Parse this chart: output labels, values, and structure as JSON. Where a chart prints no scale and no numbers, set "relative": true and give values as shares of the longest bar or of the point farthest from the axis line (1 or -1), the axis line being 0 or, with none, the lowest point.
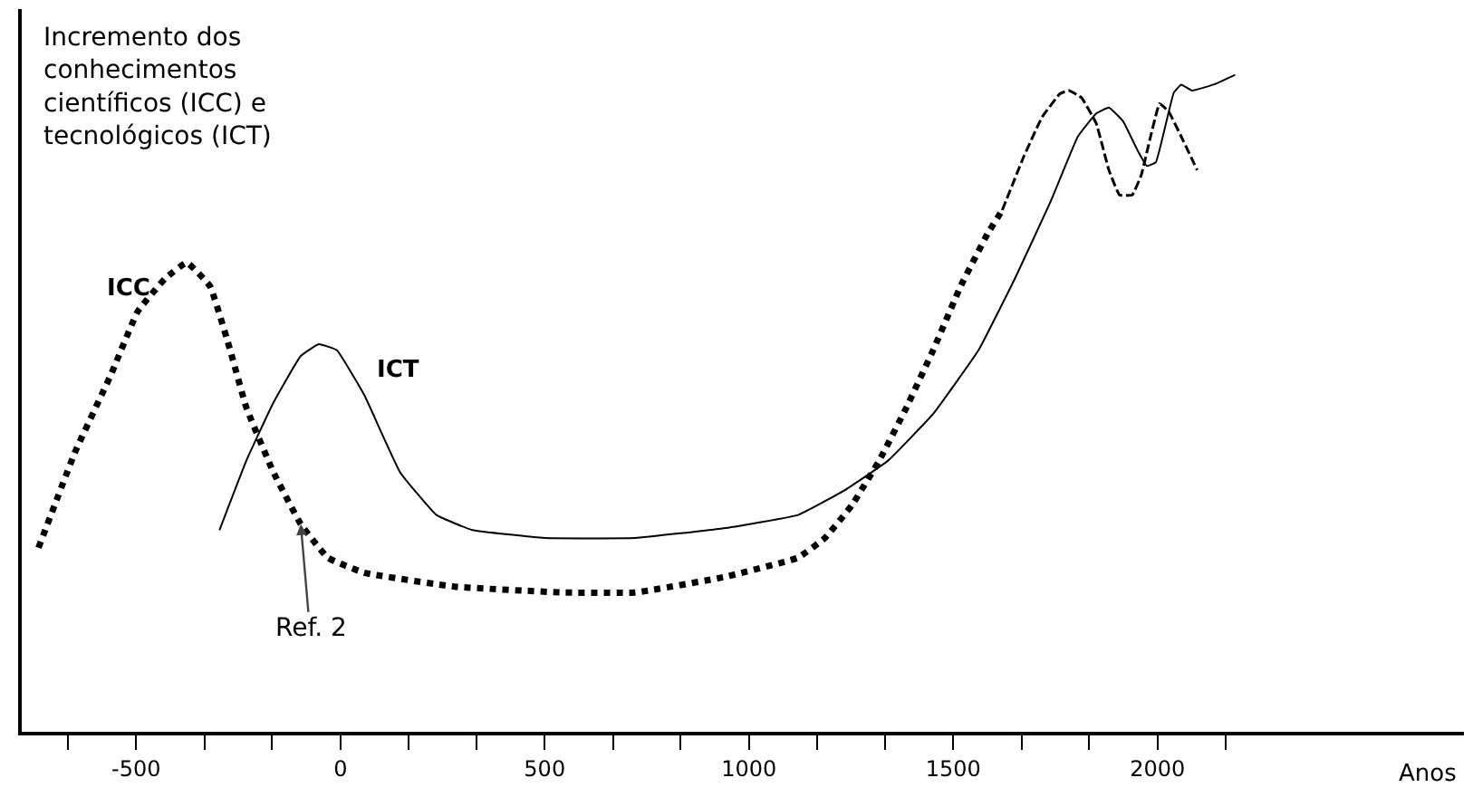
{
  "chart_data": {
    "type": "line",
    "relative": true,
    "ylabel": "Incremento dos\nconhecimentos\ncientíficos (ICC) e\ntecnológicos (ICT)",
    "xlabel": "Anos",
    "xlim": [
      -780,
      2750
    ],
    "xticks": [
      {
        "value": -667,
        "label": null
      },
      {
        "value": -500,
        "label": "-500"
      },
      {
        "value": -333,
        "label": null
      },
      {
        "value": -167,
        "label": null
      },
      0,
      {
        "value": 167,
        "label": null
      },
      {
        "value": 333,
        "label": null
      },
      500,
      {
        "value": 667,
        "label": null
      },
      {
        "value": 833,
        "label": null
      },
      1000,
      {
        "value": 1167,
        "label": null
      },
      {
        "value": 1333,
        "label": null
      },
      1500,
      {
        "value": 1667,
        "label": null
      },
      {
        "value": 1833,
        "label": null
      },
      2000,
      {
        "value": 2167,
        "label": null
      }
    ],
    "grid": false,
    "legend": false,
    "series": [
      {
        "name": "ICC",
        "color": "#000000",
        "line_style": "dotted",
        "x": [
          -739,
          -650,
          -562,
          -496,
          -429,
          -376,
          -319,
          -274,
          -230,
          -164,
          -97,
          -31,
          58,
          279,
          544,
          721,
          943,
          1120,
          1186,
          1252,
          1319,
          1385,
          1451,
          1518,
          1584,
          1620
        ],
        "values": [
          0.28,
          0.425,
          0.543,
          0.64,
          0.69,
          0.714,
          0.678,
          0.59,
          0.493,
          0.395,
          0.316,
          0.265,
          0.242,
          0.221,
          0.212,
          0.212,
          0.236,
          0.265,
          0.295,
          0.345,
          0.413,
          0.493,
          0.581,
          0.678,
          0.758,
          0.794
        ]
      },
      {
        "color": "#000000",
        "line_style": "dashed",
        "x": [
          1620,
          1673,
          1717,
          1761,
          1783,
          1814,
          1850,
          1881,
          1907,
          1938,
          1960,
          1983,
          2005,
          2027,
          2058,
          2097
        ],
        "values": [
          0.794,
          0.876,
          0.935,
          0.971,
          0.976,
          0.965,
          0.926,
          0.855,
          0.817,
          0.817,
          0.847,
          0.906,
          0.956,
          0.944,
          0.906,
          0.855
        ]
      },
      {
        "name": "ICT",
        "color": "#000000",
        "line_style": "solid",
        "x": [
          -296,
          -230,
          -164,
          -97,
          -53,
          -9,
          58,
          146,
          235,
          323,
          500,
          721,
          943,
          1120,
          1230,
          1341,
          1451,
          1562,
          1651,
          1739,
          1805,
          1850,
          1881,
          1916,
          1951,
          1974,
          1996,
          2013,
          2040,
          2058,
          2084,
          2137,
          2190
        ],
        "values": [
          0.307,
          0.413,
          0.501,
          0.572,
          0.59,
          0.581,
          0.513,
          0.395,
          0.33,
          0.307,
          0.295,
          0.295,
          0.31,
          0.33,
          0.366,
          0.413,
          0.484,
          0.581,
          0.69,
          0.808,
          0.906,
          0.941,
          0.95,
          0.929,
          0.885,
          0.861,
          0.867,
          0.906,
          0.973,
          0.985,
          0.976,
          0.985,
          1
        ]
      }
    ],
    "annotations": [
      {
        "text": "Ref. 2",
        "x": -97,
        "y": 0.316
      }
    ]
  }
}
